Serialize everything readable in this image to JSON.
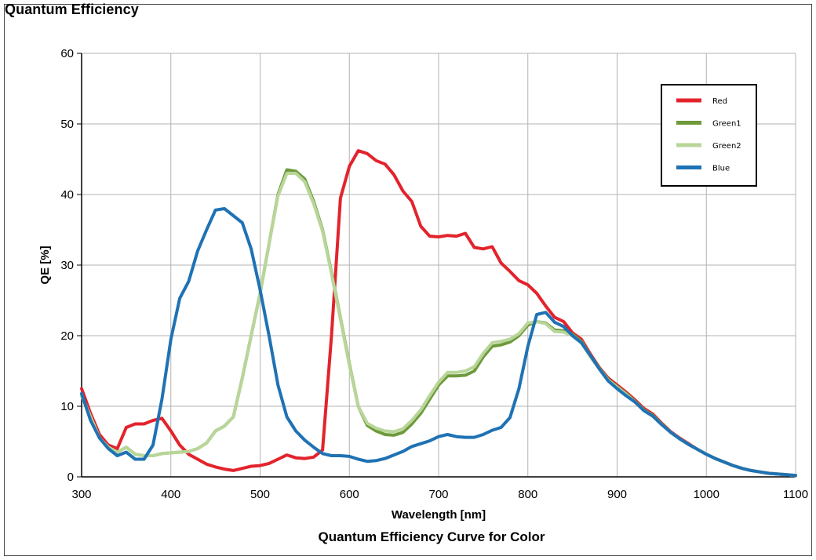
{
  "page": {
    "title": "Quantum Efficiency",
    "caption": "Quantum Efficiency Curve for Color"
  },
  "chart_data": {
    "type": "line",
    "xlabel": "Wavelength [nm]",
    "ylabel": "QE [%]",
    "xlim": [
      300,
      1100
    ],
    "ylim": [
      0,
      60
    ],
    "xticks": [
      300,
      400,
      500,
      600,
      700,
      800,
      900,
      1000,
      1100
    ],
    "yticks": [
      0,
      10,
      20,
      30,
      40,
      50,
      60
    ],
    "grid": true,
    "legend_position": "top-right",
    "series": [
      {
        "name": "Red",
        "color": "#e3232c",
        "points": [
          [
            300,
            12.5
          ],
          [
            310,
            9
          ],
          [
            320,
            6
          ],
          [
            330,
            4.5
          ],
          [
            340,
            4
          ],
          [
            350,
            7
          ],
          [
            360,
            7.5
          ],
          [
            370,
            7.5
          ],
          [
            380,
            8
          ],
          [
            390,
            8.3
          ],
          [
            400,
            6.5
          ],
          [
            410,
            4.5
          ],
          [
            420,
            3.2
          ],
          [
            430,
            2.5
          ],
          [
            440,
            1.8
          ],
          [
            450,
            1.4
          ],
          [
            460,
            1.1
          ],
          [
            470,
            0.9
          ],
          [
            480,
            1.2
          ],
          [
            490,
            1.5
          ],
          [
            500,
            1.6
          ],
          [
            510,
            1.9
          ],
          [
            520,
            2.5
          ],
          [
            530,
            3.1
          ],
          [
            540,
            2.7
          ],
          [
            550,
            2.6
          ],
          [
            560,
            2.8
          ],
          [
            570,
            3.8
          ],
          [
            580,
            20
          ],
          [
            590,
            39.5
          ],
          [
            600,
            44
          ],
          [
            610,
            46.2
          ],
          [
            620,
            45.8
          ],
          [
            630,
            44.8
          ],
          [
            640,
            44.3
          ],
          [
            650,
            42.8
          ],
          [
            660,
            40.5
          ],
          [
            670,
            39
          ],
          [
            680,
            35.5
          ],
          [
            690,
            34.1
          ],
          [
            700,
            34
          ],
          [
            710,
            34.2
          ],
          [
            720,
            34.1
          ],
          [
            730,
            34.5
          ],
          [
            740,
            32.5
          ],
          [
            750,
            32.3
          ],
          [
            760,
            32.6
          ],
          [
            770,
            30.3
          ],
          [
            780,
            29.1
          ],
          [
            790,
            27.8
          ],
          [
            800,
            27.2
          ],
          [
            810,
            26
          ],
          [
            820,
            24.2
          ],
          [
            830,
            22.6
          ],
          [
            840,
            22
          ],
          [
            850,
            20.4
          ],
          [
            860,
            19.5
          ],
          [
            870,
            17.4
          ],
          [
            880,
            15.5
          ],
          [
            890,
            14
          ],
          [
            900,
            13
          ],
          [
            910,
            12
          ],
          [
            920,
            10.9
          ],
          [
            930,
            9.7
          ],
          [
            940,
            8.9
          ],
          [
            950,
            7.6
          ],
          [
            960,
            6.4
          ],
          [
            970,
            5.5
          ],
          [
            980,
            4.7
          ],
          [
            990,
            3.9
          ],
          [
            1000,
            3.2
          ],
          [
            1010,
            2.6
          ],
          [
            1020,
            2.1
          ],
          [
            1030,
            1.6
          ],
          [
            1040,
            1.2
          ],
          [
            1050,
            0.9
          ],
          [
            1060,
            0.7
          ],
          [
            1070,
            0.5
          ],
          [
            1080,
            0.4
          ],
          [
            1090,
            0.3
          ],
          [
            1100,
            0.2
          ]
        ]
      },
      {
        "name": "Green1",
        "color": "#6e9a3c",
        "points": [
          [
            300,
            11.5
          ],
          [
            310,
            8.5
          ],
          [
            320,
            5.5
          ],
          [
            330,
            4.2
          ],
          [
            340,
            3.5
          ],
          [
            350,
            4.2
          ],
          [
            360,
            3.2
          ],
          [
            370,
            3.0
          ],
          [
            380,
            3.0
          ],
          [
            390,
            3.3
          ],
          [
            400,
            3.4
          ],
          [
            410,
            3.5
          ],
          [
            420,
            3.6
          ],
          [
            430,
            4.0
          ],
          [
            440,
            4.8
          ],
          [
            450,
            6.5
          ],
          [
            460,
            7.2
          ],
          [
            470,
            8.5
          ],
          [
            480,
            14
          ],
          [
            490,
            20
          ],
          [
            500,
            26
          ],
          [
            510,
            33
          ],
          [
            520,
            40
          ],
          [
            530,
            43.5
          ],
          [
            540,
            43.3
          ],
          [
            550,
            42.2
          ],
          [
            560,
            39
          ],
          [
            570,
            35
          ],
          [
            580,
            29
          ],
          [
            590,
            22.5
          ],
          [
            600,
            16
          ],
          [
            610,
            10
          ],
          [
            620,
            7.3
          ],
          [
            630,
            6.5
          ],
          [
            640,
            6.0
          ],
          [
            650,
            5.9
          ],
          [
            660,
            6.3
          ],
          [
            670,
            7.5
          ],
          [
            680,
            9.0
          ],
          [
            690,
            11
          ],
          [
            700,
            13
          ],
          [
            710,
            14.3
          ],
          [
            720,
            14.3
          ],
          [
            730,
            14.4
          ],
          [
            740,
            15
          ],
          [
            750,
            17
          ],
          [
            760,
            18.5
          ],
          [
            770,
            18.7
          ],
          [
            780,
            19.1
          ],
          [
            790,
            20
          ],
          [
            800,
            21.5
          ],
          [
            810,
            22
          ],
          [
            820,
            21.8
          ],
          [
            830,
            20.8
          ],
          [
            840,
            20.7
          ],
          [
            850,
            20.2
          ],
          [
            860,
            19.2
          ],
          [
            870,
            17.2
          ],
          [
            880,
            15.4
          ],
          [
            890,
            13.8
          ],
          [
            900,
            12.8
          ],
          [
            910,
            11.8
          ],
          [
            920,
            10.7
          ],
          [
            930,
            9.5
          ],
          [
            940,
            8.7
          ],
          [
            950,
            7.5
          ],
          [
            960,
            6.3
          ],
          [
            970,
            5.4
          ],
          [
            980,
            4.6
          ],
          [
            990,
            3.9
          ],
          [
            1000,
            3.2
          ],
          [
            1010,
            2.6
          ],
          [
            1020,
            2.1
          ],
          [
            1030,
            1.6
          ],
          [
            1040,
            1.2
          ],
          [
            1050,
            0.9
          ],
          [
            1060,
            0.7
          ],
          [
            1070,
            0.5
          ],
          [
            1080,
            0.4
          ],
          [
            1090,
            0.3
          ],
          [
            1100,
            0.2
          ]
        ]
      },
      {
        "name": "Green2",
        "color": "#b9d69a",
        "points": [
          [
            300,
            11.5
          ],
          [
            310,
            8.5
          ],
          [
            320,
            5.5
          ],
          [
            330,
            4.2
          ],
          [
            340,
            3.5
          ],
          [
            350,
            4.2
          ],
          [
            360,
            3.2
          ],
          [
            370,
            3.0
          ],
          [
            380,
            3.0
          ],
          [
            390,
            3.3
          ],
          [
            400,
            3.4
          ],
          [
            410,
            3.5
          ],
          [
            420,
            3.6
          ],
          [
            430,
            4.0
          ],
          [
            440,
            4.8
          ],
          [
            450,
            6.5
          ],
          [
            460,
            7.2
          ],
          [
            470,
            8.5
          ],
          [
            480,
            14
          ],
          [
            490,
            20
          ],
          [
            500,
            26
          ],
          [
            510,
            33
          ],
          [
            520,
            39.8
          ],
          [
            530,
            43.0
          ],
          [
            540,
            43.0
          ],
          [
            550,
            41.8
          ],
          [
            560,
            38.7
          ],
          [
            570,
            34.8
          ],
          [
            580,
            28.8
          ],
          [
            590,
            22.3
          ],
          [
            600,
            15.8
          ],
          [
            610,
            10
          ],
          [
            620,
            7.6
          ],
          [
            630,
            6.9
          ],
          [
            640,
            6.5
          ],
          [
            650,
            6.4
          ],
          [
            660,
            6.8
          ],
          [
            670,
            8.0
          ],
          [
            680,
            9.5
          ],
          [
            690,
            11.5
          ],
          [
            700,
            13.4
          ],
          [
            710,
            14.8
          ],
          [
            720,
            14.8
          ],
          [
            730,
            15.0
          ],
          [
            740,
            15.6
          ],
          [
            750,
            17.5
          ],
          [
            760,
            19
          ],
          [
            770,
            19.2
          ],
          [
            780,
            19.5
          ],
          [
            790,
            20.3
          ],
          [
            800,
            21.8
          ],
          [
            810,
            22
          ],
          [
            820,
            21.7
          ],
          [
            830,
            20.6
          ],
          [
            840,
            20.5
          ],
          [
            850,
            20.0
          ],
          [
            860,
            19
          ],
          [
            870,
            17
          ],
          [
            880,
            15.3
          ],
          [
            890,
            13.7
          ],
          [
            900,
            12.7
          ],
          [
            910,
            11.7
          ],
          [
            920,
            10.6
          ],
          [
            930,
            9.4
          ],
          [
            940,
            8.6
          ],
          [
            950,
            7.4
          ],
          [
            960,
            6.3
          ],
          [
            970,
            5.4
          ],
          [
            980,
            4.6
          ],
          [
            990,
            3.9
          ],
          [
            1000,
            3.2
          ],
          [
            1010,
            2.6
          ],
          [
            1020,
            2.1
          ],
          [
            1030,
            1.6
          ],
          [
            1040,
            1.2
          ],
          [
            1050,
            0.9
          ],
          [
            1060,
            0.7
          ],
          [
            1070,
            0.5
          ],
          [
            1080,
            0.4
          ],
          [
            1090,
            0.3
          ],
          [
            1100,
            0.2
          ]
        ]
      },
      {
        "name": "Blue",
        "color": "#1f72b4",
        "points": [
          [
            300,
            11.8
          ],
          [
            310,
            8
          ],
          [
            320,
            5.5
          ],
          [
            330,
            4.0
          ],
          [
            340,
            3.0
          ],
          [
            350,
            3.5
          ],
          [
            360,
            2.5
          ],
          [
            370,
            2.5
          ],
          [
            380,
            4.5
          ],
          [
            390,
            11
          ],
          [
            400,
            19.5
          ],
          [
            410,
            25.3
          ],
          [
            420,
            27.7
          ],
          [
            430,
            32
          ],
          [
            440,
            35
          ],
          [
            450,
            37.8
          ],
          [
            460,
            38
          ],
          [
            470,
            37
          ],
          [
            480,
            36
          ],
          [
            490,
            32.3
          ],
          [
            500,
            26.5
          ],
          [
            510,
            20
          ],
          [
            520,
            13
          ],
          [
            530,
            8.5
          ],
          [
            540,
            6.5
          ],
          [
            550,
            5.2
          ],
          [
            560,
            4.2
          ],
          [
            570,
            3.3
          ],
          [
            580,
            3.0
          ],
          [
            590,
            3.0
          ],
          [
            600,
            2.9
          ],
          [
            610,
            2.5
          ],
          [
            620,
            2.2
          ],
          [
            630,
            2.3
          ],
          [
            640,
            2.6
          ],
          [
            650,
            3.1
          ],
          [
            660,
            3.6
          ],
          [
            670,
            4.3
          ],
          [
            680,
            4.7
          ],
          [
            690,
            5.1
          ],
          [
            700,
            5.7
          ],
          [
            710,
            6.0
          ],
          [
            720,
            5.7
          ],
          [
            730,
            5.6
          ],
          [
            740,
            5.6
          ],
          [
            750,
            6.0
          ],
          [
            760,
            6.6
          ],
          [
            770,
            7.0
          ],
          [
            780,
            8.4
          ],
          [
            790,
            12.5
          ],
          [
            800,
            18.5
          ],
          [
            810,
            23.0
          ],
          [
            820,
            23.3
          ],
          [
            830,
            21.9
          ],
          [
            840,
            21.3
          ],
          [
            850,
            20
          ],
          [
            860,
            19
          ],
          [
            870,
            17.2
          ],
          [
            880,
            15.3
          ],
          [
            890,
            13.6
          ],
          [
            900,
            12.5
          ],
          [
            910,
            11.5
          ],
          [
            920,
            10.6
          ],
          [
            930,
            9.4
          ],
          [
            940,
            8.6
          ],
          [
            950,
            7.4
          ],
          [
            960,
            6.3
          ],
          [
            970,
            5.4
          ],
          [
            980,
            4.6
          ],
          [
            990,
            3.9
          ],
          [
            1000,
            3.2
          ],
          [
            1010,
            2.6
          ],
          [
            1020,
            2.1
          ],
          [
            1030,
            1.6
          ],
          [
            1040,
            1.2
          ],
          [
            1050,
            0.9
          ],
          [
            1060,
            0.7
          ],
          [
            1070,
            0.5
          ],
          [
            1080,
            0.4
          ],
          [
            1090,
            0.3
          ],
          [
            1100,
            0.2
          ]
        ]
      }
    ]
  }
}
